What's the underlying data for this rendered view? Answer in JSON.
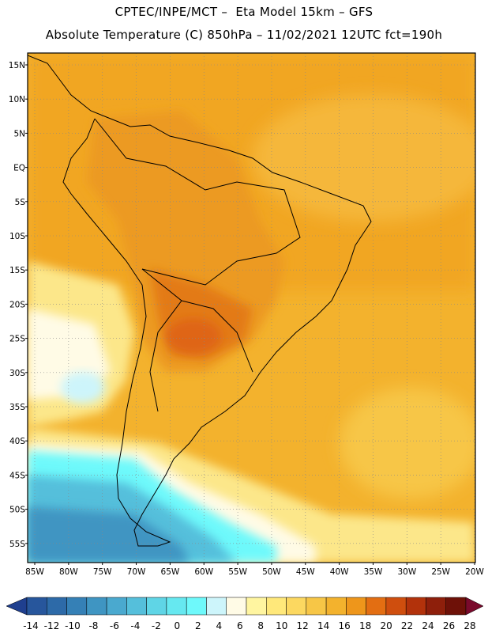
{
  "header": {
    "line1": "CPTEC/INPE/MCT –  Eta Model 15km – GFS",
    "line2": "Absolute Temperature (C) 850hPa – 11/02/2021 12UTC fct=190h"
  },
  "map": {
    "lat_labels": [
      "15N",
      "10N",
      "5N",
      "EQ",
      "5S",
      "10S",
      "15S",
      "20S",
      "25S",
      "30S",
      "35S",
      "40S",
      "45S",
      "50S",
      "55S"
    ],
    "lon_labels": [
      "85W",
      "80W",
      "75W",
      "70W",
      "65W",
      "60W",
      "55W",
      "50W",
      "45W",
      "40W",
      "35W",
      "30W",
      "25W",
      "20W"
    ],
    "grid": "dotted"
  },
  "colorbar": {
    "ticks": [
      "-14",
      "-12",
      "-10",
      "-8",
      "-6",
      "-4",
      "-2",
      "0",
      "2",
      "4",
      "6",
      "8",
      "10",
      "12",
      "14",
      "16",
      "18",
      "20",
      "22",
      "24",
      "26",
      "28"
    ],
    "colors": [
      "#1f3f8f",
      "#27569c",
      "#2d6aa8",
      "#3580b6",
      "#3f95c2",
      "#4aa9cf",
      "#55bfdb",
      "#5fd5e6",
      "#66e8f0",
      "#6ef9fb",
      "#cdf5fb",
      "#fffbe6",
      "#fff5a0",
      "#ffe87a",
      "#fcd860",
      "#f7c646",
      "#f3b22d",
      "#ee961b",
      "#e36e12",
      "#cf4e0e",
      "#b2320b",
      "#8e1f0b",
      "#6e1108",
      "#7a0a2c"
    ]
  }
}
